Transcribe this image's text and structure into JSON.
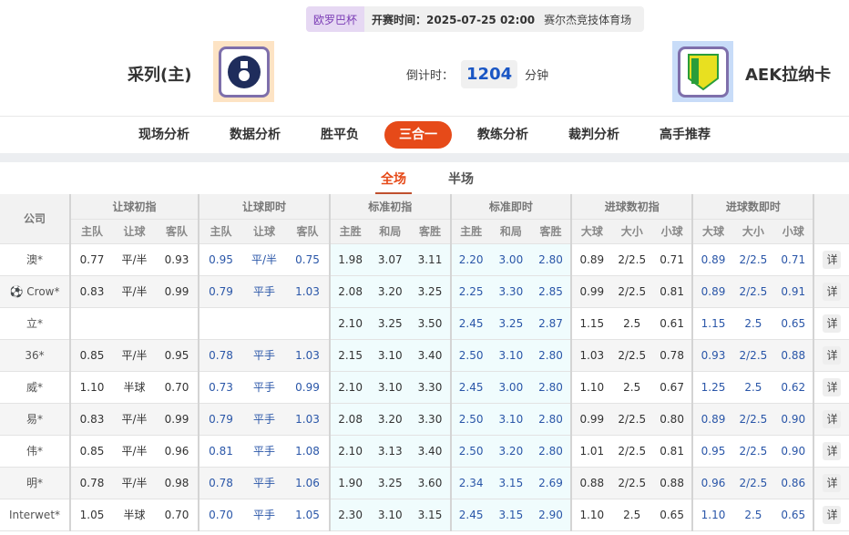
{
  "match": {
    "league": "欧罗巴杯",
    "kickoff": "开赛时间：2025-07-25 02:00",
    "venue": "赛尔杰竞技体育场",
    "home": "采列(主)",
    "away": "AEK拉纳卡",
    "countdown_label": "倒计时：",
    "countdown": "1204",
    "countdown_unit": "分钟"
  },
  "nav": [
    "现场分析",
    "数据分析",
    "胜平负",
    "三合一",
    "教练分析",
    "裁判分析",
    "高手推荐"
  ],
  "nav_active": "三合一",
  "subtabs": [
    "全场",
    "半场"
  ],
  "colors": {
    "accent": "#e64a19",
    "blue": "#2a56a8"
  },
  "table": {
    "company_header": "公司",
    "groups": [
      "让球初指",
      "让球即时",
      "标准初指",
      "标准即时",
      "进球数初指",
      "进球数即时"
    ],
    "subheaders": [
      "主队",
      "让球",
      "客队",
      "主队",
      "让球",
      "客队",
      "主胜",
      "和局",
      "客胜",
      "主胜",
      "和局",
      "客胜",
      "大球",
      "大小",
      "小球",
      "大球",
      "大小",
      "小球"
    ],
    "detail_label": "详",
    "rows": [
      {
        "company": "澳*",
        "icon": false,
        "v": [
          "0.77",
          "平/半",
          "0.93",
          "0.95",
          "平/半",
          "0.75",
          "1.98",
          "3.07",
          "3.11",
          "2.20",
          "3.00",
          "2.80",
          "0.89",
          "2/2.5",
          "0.71",
          "0.89",
          "2/2.5",
          "0.71"
        ]
      },
      {
        "company": "Crow*",
        "icon": true,
        "v": [
          "0.83",
          "平/半",
          "0.99",
          "0.79",
          "平手",
          "1.03",
          "2.08",
          "3.20",
          "3.25",
          "2.25",
          "3.30",
          "2.85",
          "0.99",
          "2/2.5",
          "0.81",
          "0.89",
          "2/2.5",
          "0.91"
        ]
      },
      {
        "company": "立*",
        "icon": false,
        "v": [
          "",
          "",
          "",
          "",
          "",
          "",
          "2.10",
          "3.25",
          "3.50",
          "2.45",
          "3.25",
          "2.87",
          "1.15",
          "2.5",
          "0.61",
          "1.15",
          "2.5",
          "0.65"
        ]
      },
      {
        "company": "36*",
        "icon": false,
        "v": [
          "0.85",
          "平/半",
          "0.95",
          "0.78",
          "平手",
          "1.03",
          "2.15",
          "3.10",
          "3.40",
          "2.50",
          "3.10",
          "2.80",
          "1.03",
          "2/2.5",
          "0.78",
          "0.93",
          "2/2.5",
          "0.88"
        ]
      },
      {
        "company": "威*",
        "icon": false,
        "v": [
          "1.10",
          "半球",
          "0.70",
          "0.73",
          "平手",
          "0.99",
          "2.10",
          "3.10",
          "3.30",
          "2.45",
          "3.00",
          "2.80",
          "1.10",
          "2.5",
          "0.67",
          "1.25",
          "2.5",
          "0.62"
        ]
      },
      {
        "company": "易*",
        "icon": false,
        "v": [
          "0.83",
          "平/半",
          "0.99",
          "0.79",
          "平手",
          "1.03",
          "2.08",
          "3.20",
          "3.30",
          "2.50",
          "3.10",
          "2.80",
          "0.99",
          "2/2.5",
          "0.80",
          "0.89",
          "2/2.5",
          "0.90"
        ]
      },
      {
        "company": "伟*",
        "icon": false,
        "v": [
          "0.85",
          "平/半",
          "0.96",
          "0.81",
          "平手",
          "1.08",
          "2.10",
          "3.13",
          "3.40",
          "2.50",
          "3.20",
          "2.80",
          "1.01",
          "2/2.5",
          "0.81",
          "0.95",
          "2/2.5",
          "0.90"
        ]
      },
      {
        "company": "明*",
        "icon": false,
        "v": [
          "0.78",
          "平/半",
          "0.98",
          "0.78",
          "平手",
          "1.06",
          "1.90",
          "3.25",
          "3.60",
          "2.34",
          "3.15",
          "2.69",
          "0.88",
          "2/2.5",
          "0.88",
          "0.96",
          "2/2.5",
          "0.86"
        ]
      },
      {
        "company": "Interwet*",
        "icon": false,
        "v": [
          "1.05",
          "半球",
          "0.70",
          "0.70",
          "平手",
          "1.05",
          "2.30",
          "3.10",
          "3.15",
          "2.45",
          "3.15",
          "2.90",
          "1.10",
          "2.5",
          "0.65",
          "1.10",
          "2.5",
          "0.65"
        ]
      }
    ]
  }
}
